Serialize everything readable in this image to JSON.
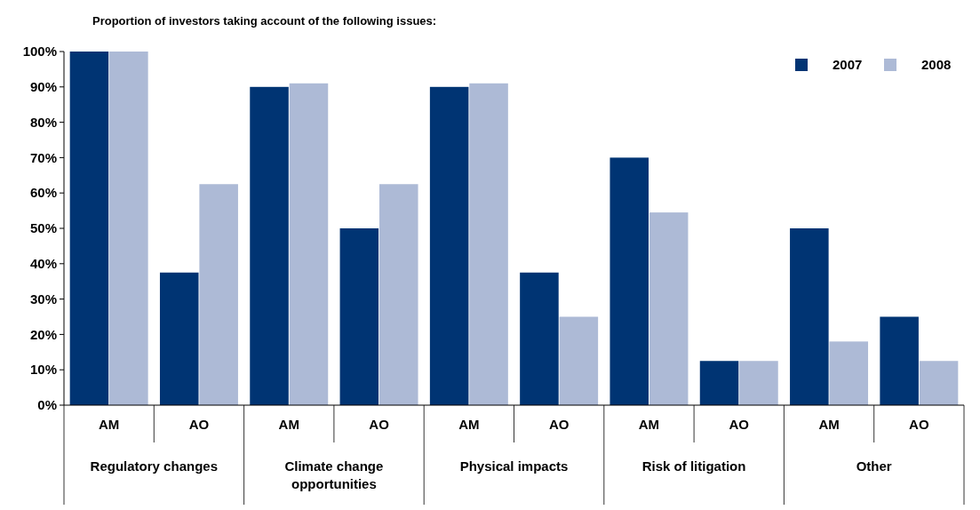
{
  "chart_data": {
    "type": "bar",
    "title": "Proportion of investors taking account of the following issues:",
    "categories": [
      "AM",
      "AO",
      "AM",
      "AO",
      "AM",
      "AO",
      "AM",
      "AO",
      "AM",
      "AO"
    ],
    "series": [
      {
        "name": "2007",
        "color": "#003473",
        "values": [
          100,
          37.5,
          90,
          50,
          90,
          37.5,
          70,
          12.5,
          50,
          25
        ]
      },
      {
        "name": "2008",
        "color": "#adbad6",
        "values": [
          100,
          62.5,
          91,
          62.5,
          91,
          25,
          54.5,
          12.5,
          18,
          12.5
        ]
      }
    ],
    "annotations": [
      "Regulatory changes",
      "Climate change opportunities",
      "Physical impacts",
      "Risk of litigation",
      "Other"
    ],
    "ylim": [
      0,
      100
    ],
    "yticks": [
      {
        "value": 0,
        "label": "0%"
      },
      {
        "value": 10,
        "label": "10%"
      },
      {
        "value": 20,
        "label": "20%"
      },
      {
        "value": 30,
        "label": "30%"
      },
      {
        "value": 40,
        "label": "40%"
      },
      {
        "value": 50,
        "label": "50%"
      },
      {
        "value": 60,
        "label": "60%"
      },
      {
        "value": 70,
        "label": "70%"
      },
      {
        "value": 80,
        "label": "80%"
      },
      {
        "value": 90,
        "label": "90%"
      },
      {
        "value": 100,
        "label": "100%"
      }
    ],
    "legend": "top right",
    "grid": false
  }
}
